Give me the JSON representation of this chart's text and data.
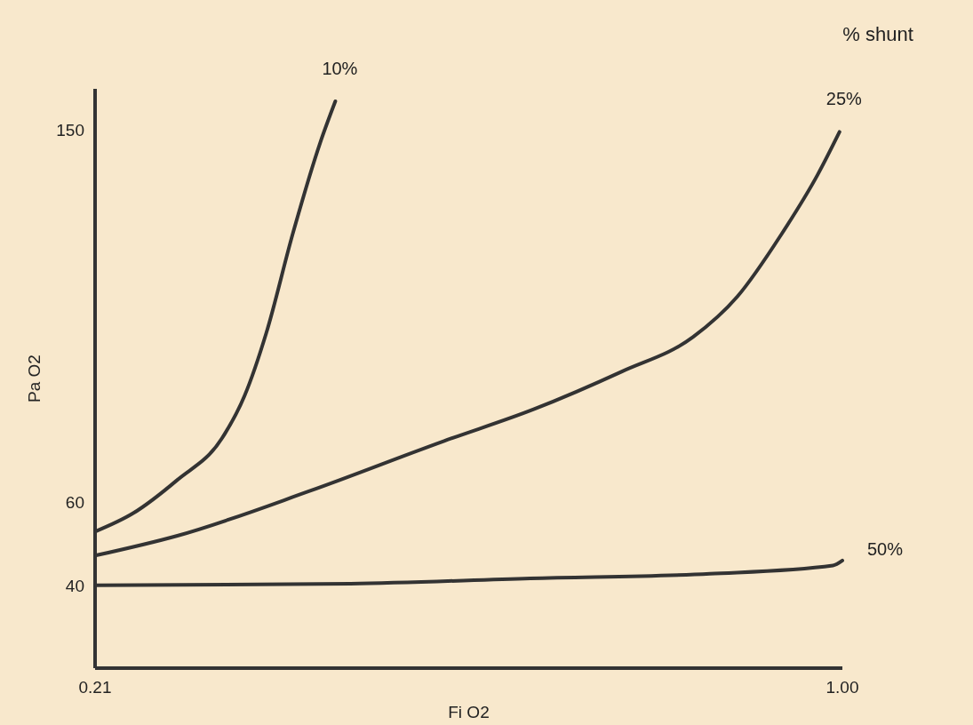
{
  "chart_data": {
    "type": "line",
    "xlabel": "Fi O2",
    "ylabel": "Pa O2",
    "legend_title": "% shunt",
    "xlim": [
      0.21,
      1.0
    ],
    "xticks": [
      0.21,
      {
        "value": 1,
        "label": "1.00"
      }
    ],
    "ylim": [
      20,
      160
    ],
    "yticks": [
      40,
      60,
      150
    ],
    "grid": false,
    "marker": "none",
    "line_style": "solid",
    "series": [
      {
        "name": "10%",
        "color": "#333333",
        "x": [
          0.21,
          0.25,
          0.297,
          0.344,
          0.368,
          0.391,
          0.419,
          0.448,
          0.464
        ],
        "values": [
          53,
          57.4,
          65.5,
          75.5,
          85.8,
          101,
          125,
          147,
          157
        ]
      },
      {
        "name": "25%",
        "color": "#333333",
        "x": [
          0.21,
          0.297,
          0.438,
          0.579,
          0.673,
          0.767,
          0.842,
          0.889,
          0.936,
          0.974,
          0.997
        ],
        "values": [
          47.2,
          52,
          62.9,
          74.9,
          82.5,
          91.7,
          100,
          109.8,
          125,
          139.3,
          149.6
        ]
      },
      {
        "name": "50%",
        "color": "#333333",
        "x": [
          0.21,
          0.48,
          0.67,
          0.86,
          0.99,
          1.0
        ],
        "values": [
          40,
          40.4,
          41.7,
          42.8,
          44.8,
          46
        ]
      }
    ]
  }
}
